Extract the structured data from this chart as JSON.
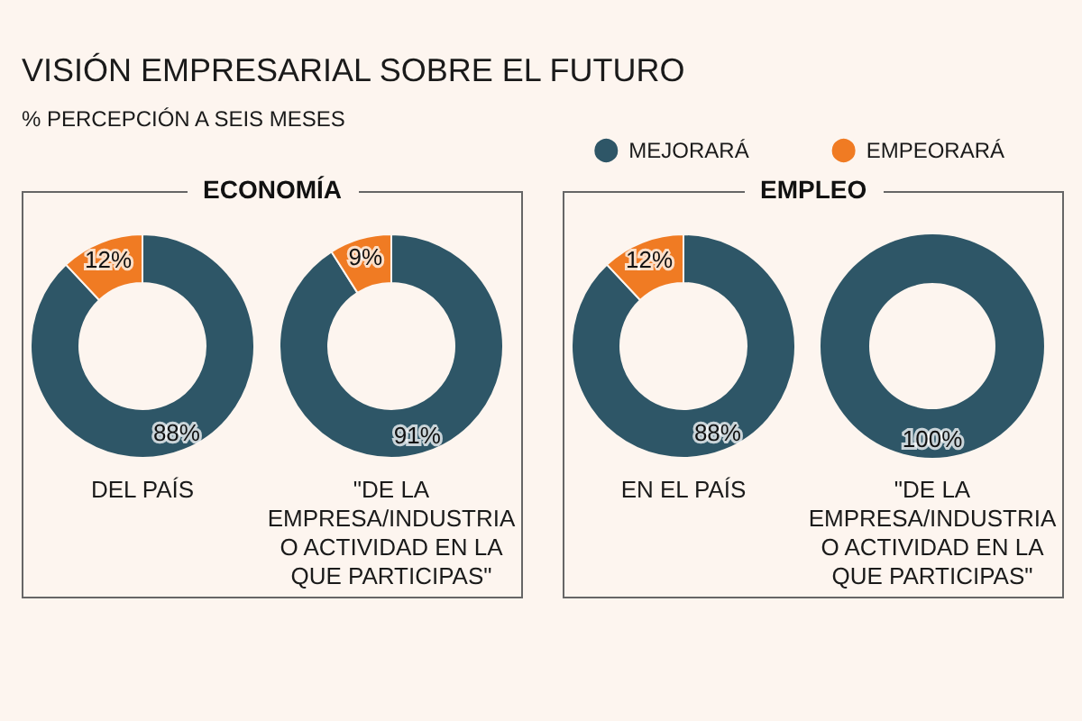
{
  "chart_data": {
    "type": "donut",
    "title": "VISIÓN EMPRESARIAL SOBRE EL FUTURO",
    "subtitle": "% PERCEPCIÓN A SEIS MESES",
    "categories": [
      "MEJORARÁ",
      "EMPEORARÁ"
    ],
    "colors": [
      "#2e5667",
      "#f07b23"
    ],
    "legend": "top right",
    "annotations": [
      "ECONOMÍA",
      "EMPLEO"
    ],
    "series": [
      {
        "name": "DEL PAÍS",
        "values": [
          88,
          12
        ],
        "value_labels": [
          "88%",
          "12%"
        ]
      },
      {
        "name": "\"DE LA EMPRESA/INDUSTRIA O ACTIVIDAD EN LA QUE PARTICIPAS\"",
        "values": [
          91,
          9
        ],
        "value_labels": [
          "91%",
          "9%"
        ]
      },
      {
        "name": "EN EL PAÍS",
        "values": [
          88,
          12
        ],
        "value_labels": [
          "88%",
          "12%"
        ]
      },
      {
        "name": "\"DE LA EMPRESA/INDUSTRIA O ACTIVIDAD EN LA QUE PARTICIPAS\"",
        "values": [
          100,
          null
        ],
        "value_labels": [
          "100%",
          null
        ]
      }
    ]
  }
}
